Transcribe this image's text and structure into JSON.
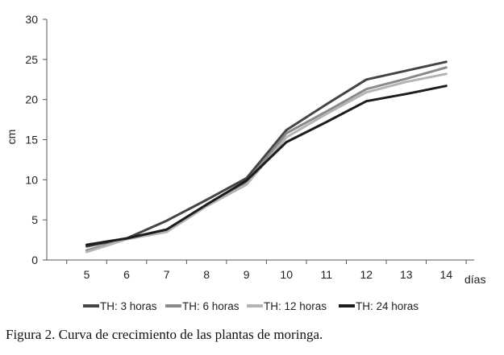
{
  "chart_data": {
    "type": "line",
    "categories": [
      "5",
      "6",
      "7",
      "8",
      "9",
      "10",
      "11",
      "12",
      "13",
      "14"
    ],
    "x": [
      5,
      6,
      7,
      8,
      9,
      10,
      11,
      12,
      13,
      14
    ],
    "series": [
      {
        "name": "TH: 3 horas",
        "values": [
          1.7,
          2.7,
          4.9,
          7.5,
          10.2,
          16.2,
          19.4,
          22.5,
          23.6,
          24.7
        ],
        "color": "#444444"
      },
      {
        "name": "TH: 6 horas",
        "values": [
          1.2,
          2.6,
          3.6,
          6.8,
          9.7,
          15.8,
          18.5,
          21.3,
          22.6,
          24.0
        ],
        "color": "#8a8a8a"
      },
      {
        "name": "TH: 12 horas",
        "values": [
          1.0,
          2.6,
          3.5,
          6.7,
          9.4,
          15.3,
          18.2,
          20.9,
          22.2,
          23.2
        ],
        "color": "#b4b4b4"
      },
      {
        "name": "TH: 24 horas",
        "values": [
          1.9,
          2.7,
          3.8,
          6.9,
          9.9,
          14.7,
          17.2,
          19.8,
          20.7,
          21.7
        ],
        "color": "#1c1c1c"
      }
    ],
    "title": "",
    "xlabel": "días",
    "ylabel": "cm",
    "ylim": [
      0,
      30
    ],
    "yticks": [
      "0",
      "5",
      "10",
      "15",
      "20",
      "25",
      "30"
    ],
    "grid": false,
    "legend": "bottom"
  },
  "caption": "Figura 2. Curva de crecimiento de las plantas de moringa."
}
